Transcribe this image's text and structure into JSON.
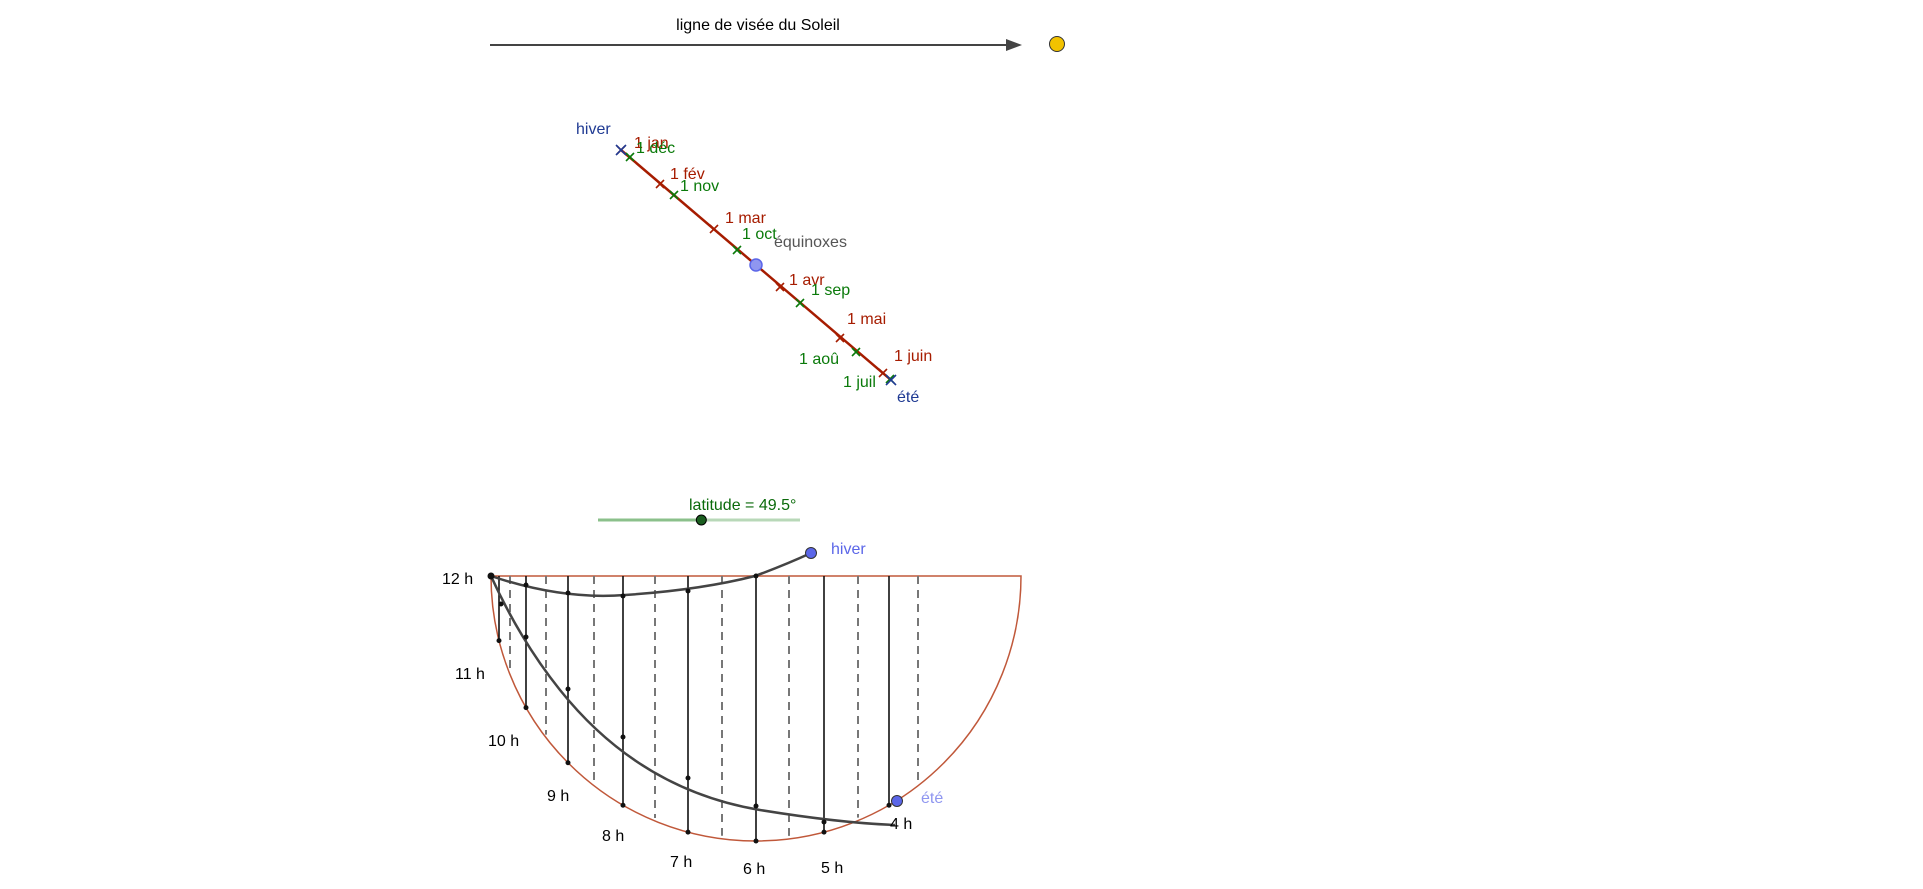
{
  "sight_line": {
    "label": "ligne de visée du Soleil",
    "sun_icon": "sun-icon"
  },
  "ecliptic": {
    "winter_label": "hiver",
    "summer_label": "été",
    "equinox_label": "équinoxes",
    "months_first_half": [
      "1 jan",
      "1 fév",
      "1 mar",
      "1 avr",
      "1 mai",
      "1 juin"
    ],
    "months_second_half": [
      "1 juil",
      "1 aoû",
      "1 sep",
      "1 oct",
      "1 nov",
      "1 déc"
    ],
    "colors": {
      "first_half": "#a61c00",
      "second_half": "#0a7a0a",
      "season": "#1f3a93"
    }
  },
  "latitude_slider": {
    "text": "latitude = 49.5°",
    "value_deg": 49.5,
    "min_deg": 0,
    "max_deg": 90
  },
  "sundial": {
    "hour_labels": [
      "12 h",
      "11 h",
      "10 h",
      "9 h",
      "8 h",
      "7 h",
      "6 h",
      "5 h",
      "4 h"
    ],
    "winter_label": "hiver",
    "summer_label": "été"
  },
  "colors": {
    "semicircle": "#c0583a",
    "curve": "#444444",
    "marker": "#5b66e8",
    "sun": "#f2c200"
  }
}
